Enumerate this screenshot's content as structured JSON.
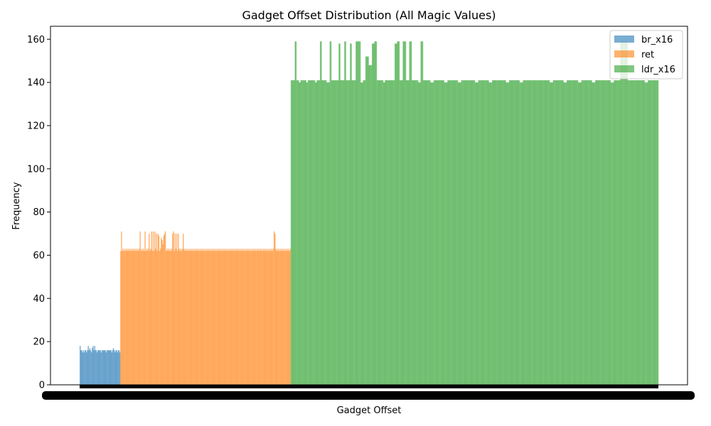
{
  "chart_data": {
    "type": "histogram",
    "title": "Gadget Offset Distribution (All Magic Values)",
    "xlabel": "Gadget Offset",
    "ylabel": "Frequency",
    "ylim": [
      0,
      166
    ],
    "yticks": [
      0,
      20,
      40,
      60,
      80,
      100,
      120,
      140,
      160
    ],
    "legend_position": "top-right",
    "grid": false,
    "x_tick_labels_legible": false,
    "series": [
      {
        "name": "br_x16",
        "color": "#1f77b4",
        "alpha": 0.6,
        "bin_range": [
          0,
          50
        ],
        "values": [
          18,
          16,
          16,
          15,
          16,
          15,
          16,
          16,
          15,
          16,
          18,
          16,
          17,
          16,
          15,
          17,
          18,
          16,
          18,
          16,
          16,
          15,
          16,
          16,
          16,
          16,
          15,
          16,
          16,
          16,
          16,
          16,
          15,
          16,
          16,
          16,
          16,
          16,
          16,
          15,
          16,
          17,
          16,
          15,
          16,
          16,
          15,
          16,
          16,
          15
        ]
      },
      {
        "name": "ret",
        "color": "#ff7f0e",
        "alpha": 0.6,
        "bin_range": [
          50,
          250
        ],
        "values": [
          62,
          71,
          62,
          63,
          62,
          63,
          62,
          63,
          62,
          63,
          62,
          63,
          62,
          63,
          62,
          63,
          62,
          63,
          62,
          63,
          62,
          63,
          62,
          63,
          71,
          62,
          63,
          62,
          63,
          62,
          71,
          62,
          63,
          62,
          63,
          70,
          62,
          63,
          71,
          62,
          71,
          62,
          71,
          63,
          70,
          62,
          70,
          69,
          62,
          63,
          68,
          67,
          65,
          69,
          70,
          71,
          62,
          63,
          62,
          63,
          62,
          63,
          62,
          63,
          70,
          71,
          62,
          70,
          63,
          70,
          62,
          70,
          63,
          62,
          63,
          62,
          63,
          70,
          63,
          62,
          63,
          62,
          63,
          62,
          63,
          62,
          63,
          62,
          63,
          62,
          63,
          62,
          63,
          62,
          63,
          62,
          63,
          62,
          63,
          62,
          63,
          62,
          63,
          62,
          63,
          62,
          63,
          62,
          63,
          62,
          63,
          62,
          63,
          62,
          63,
          62,
          63,
          62,
          63,
          62,
          63,
          62,
          63,
          62,
          63,
          62,
          63,
          62,
          63,
          62,
          63,
          62,
          63,
          62,
          63,
          62,
          63,
          62,
          63,
          62,
          63,
          62,
          63,
          62,
          63,
          62,
          63,
          62,
          63,
          62,
          63,
          62,
          63,
          62,
          63,
          62,
          63,
          62,
          63,
          62,
          63,
          62,
          63,
          62,
          63,
          62,
          63,
          62,
          63,
          62,
          63,
          62,
          63,
          62,
          63,
          62,
          63,
          62,
          63,
          62,
          63,
          62,
          63,
          62,
          63,
          62,
          63,
          62,
          63,
          71,
          70,
          63,
          62,
          63,
          62,
          63,
          62,
          63,
          62,
          63,
          62,
          63,
          62,
          63,
          62,
          63,
          62,
          63,
          62,
          63
        ]
      },
      {
        "name": "ldr_x16",
        "color": "#2ca02c",
        "alpha": 0.6,
        "bin_range": [
          250,
          700
        ],
        "values": [
          141,
          141,
          141,
          141,
          141,
          159,
          159,
          141,
          141,
          141,
          140,
          140,
          141,
          141,
          141,
          141,
          141,
          141,
          141,
          140,
          140,
          141,
          141,
          141,
          141,
          141,
          141,
          141,
          141,
          141,
          140,
          140,
          141,
          141,
          141,
          141,
          159,
          159,
          141,
          141,
          141,
          141,
          141,
          141,
          140,
          140,
          140,
          140,
          159,
          159,
          141,
          141,
          141,
          141,
          141,
          141,
          141,
          141,
          141,
          158,
          158,
          141,
          141,
          141,
          141,
          141,
          159,
          159,
          141,
          141,
          141,
          141,
          141,
          158,
          158,
          141,
          141,
          141,
          141,
          141,
          159,
          159,
          159,
          159,
          159,
          159,
          140,
          140,
          140,
          141,
          141,
          141,
          152,
          152,
          152,
          152,
          148,
          148,
          148,
          148,
          158,
          158,
          158,
          159,
          159,
          159,
          141,
          141,
          141,
          141,
          141,
          141,
          141,
          141,
          140,
          140,
          141,
          141,
          141,
          141,
          141,
          141,
          141,
          141,
          141,
          141,
          141,
          141,
          158,
          158,
          158,
          159,
          159,
          159,
          141,
          141,
          141,
          141,
          159,
          159,
          159,
          159,
          141,
          141,
          141,
          141,
          159,
          159,
          159,
          141,
          141,
          141,
          141,
          141,
          141,
          141,
          141,
          140,
          140,
          140,
          159,
          159,
          159,
          141,
          141,
          141,
          141,
          141,
          141,
          141,
          141,
          141,
          140,
          140,
          140,
          140,
          141,
          141,
          141,
          141,
          141,
          141,
          141,
          141,
          141,
          141,
          141,
          141,
          141,
          140,
          140,
          140,
          140,
          141,
          141,
          141,
          141,
          141,
          141,
          141,
          141,
          141,
          141,
          141,
          141,
          141,
          140,
          140,
          140,
          140,
          141,
          141,
          141,
          141,
          141,
          141,
          141,
          141,
          141,
          141,
          141,
          141,
          141,
          141,
          141,
          141,
          141,
          140,
          140,
          140,
          140,
          141,
          141,
          141,
          141,
          141,
          141,
          141,
          141,
          141,
          141,
          141,
          141,
          141,
          140,
          140,
          140,
          140,
          141,
          141,
          141,
          141,
          141,
          141,
          141,
          141,
          141,
          141,
          141,
          141,
          141,
          141,
          141,
          141,
          141,
          140,
          140,
          140,
          140,
          141,
          141,
          141,
          141,
          141,
          141,
          141,
          141,
          141,
          141,
          141,
          141,
          141,
          140,
          140,
          140,
          140,
          141,
          141,
          141,
          141,
          141,
          141,
          141,
          141,
          141,
          141,
          141,
          141,
          141,
          141,
          141,
          141,
          141,
          141,
          141,
          141,
          141,
          141,
          141,
          141,
          141,
          141,
          141,
          141,
          141,
          141,
          141,
          141,
          141,
          140,
          140,
          140,
          140,
          141,
          141,
          141,
          141,
          141,
          141,
          141,
          141,
          141,
          141,
          141,
          141,
          141,
          140,
          140,
          140,
          140,
          141,
          141,
          141,
          141,
          141,
          141,
          141,
          141,
          141,
          141,
          141,
          141,
          141,
          141,
          140,
          140,
          140,
          140,
          141,
          141,
          141,
          141,
          141,
          141,
          141,
          141,
          141,
          141,
          141,
          141,
          141,
          140,
          140,
          140,
          140,
          141,
          141,
          141,
          141,
          141,
          141,
          141,
          141,
          141,
          141,
          141,
          141,
          141,
          141,
          141,
          141,
          141,
          141,
          141,
          140,
          140,
          140,
          140,
          141,
          141,
          141,
          141,
          141,
          141,
          141,
          141,
          159,
          159,
          159,
          159,
          159,
          159,
          159,
          159,
          159,
          141,
          141,
          141,
          141,
          141,
          141,
          141,
          141,
          141,
          141,
          141,
          141,
          141,
          141,
          141,
          141,
          141,
          141,
          141,
          141,
          141,
          140,
          140,
          140,
          140,
          141,
          141,
          141,
          141,
          141,
          141,
          141,
          141,
          141,
          141,
          141,
          141,
          141
        ]
      }
    ]
  }
}
